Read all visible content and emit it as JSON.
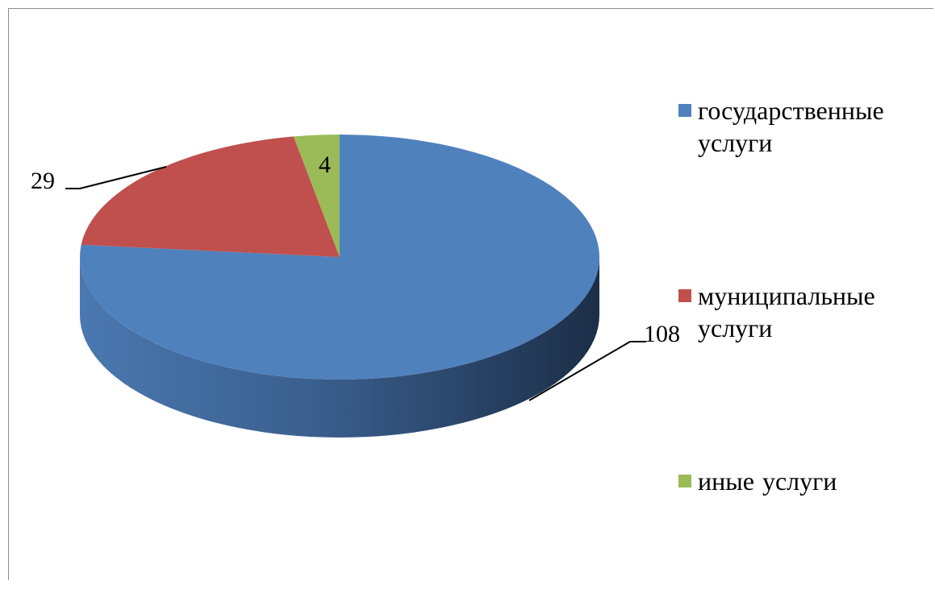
{
  "chart_data": {
    "type": "pie",
    "title": "",
    "categories": [
      "государственные услуги",
      "муниципальные услуги",
      "иные услуги"
    ],
    "values": [
      108,
      29,
      4
    ],
    "data_labels": [
      "108",
      "29",
      "4"
    ],
    "colors": [
      "#4f81bd",
      "#c0504d",
      "#9bbb59"
    ],
    "legend_position": "right",
    "style": "3d-pie"
  },
  "legend": {
    "items": [
      {
        "label": "государственные услуги",
        "color": "#4f81bd"
      },
      {
        "label": "муниципальные услуги",
        "color": "#c0504d"
      },
      {
        "label": "иные услуги",
        "color": "#9bbb59"
      }
    ]
  }
}
